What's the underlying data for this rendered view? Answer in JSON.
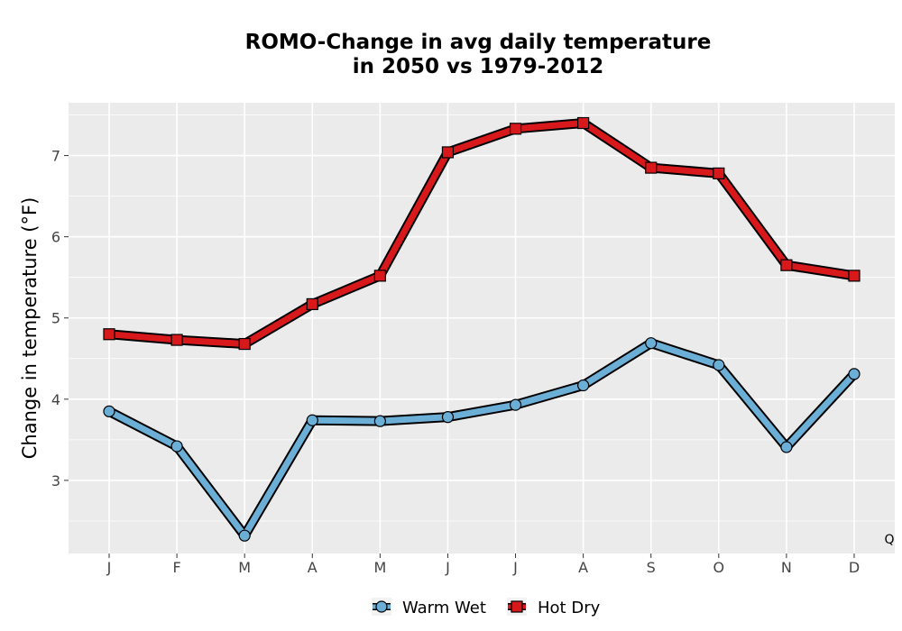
{
  "chart_data": {
    "type": "line",
    "title_line1": "ROMO-Change in avg daily temperature",
    "title_line2": "in 2050 vs 1979-2012",
    "xlabel": "",
    "ylabel": "Change in temperature (°F)",
    "categories": [
      "J",
      "F",
      "M",
      "A",
      "M",
      "J",
      "J",
      "A",
      "S",
      "O",
      "N",
      "D"
    ],
    "ylim": [
      2.1,
      7.65
    ],
    "yticks": [
      3,
      4,
      5,
      6,
      7
    ],
    "grid": true,
    "legend_position": "bottom",
    "series": [
      {
        "name": "Warm Wet",
        "marker": "circle",
        "color": "#6baed6",
        "values": [
          3.85,
          3.42,
          2.32,
          3.74,
          3.73,
          3.78,
          3.93,
          4.17,
          4.69,
          4.42,
          3.41,
          4.31
        ]
      },
      {
        "name": "Hot Dry",
        "marker": "square",
        "color": "#d7191c",
        "values": [
          4.8,
          4.73,
          4.68,
          5.17,
          5.52,
          7.04,
          7.33,
          7.4,
          6.85,
          6.78,
          5.65,
          5.52
        ]
      }
    ],
    "corner_mark": "Q"
  },
  "colors": {
    "panel": "#ebebeb",
    "grid": "#ffffff",
    "outline": "#000000"
  }
}
